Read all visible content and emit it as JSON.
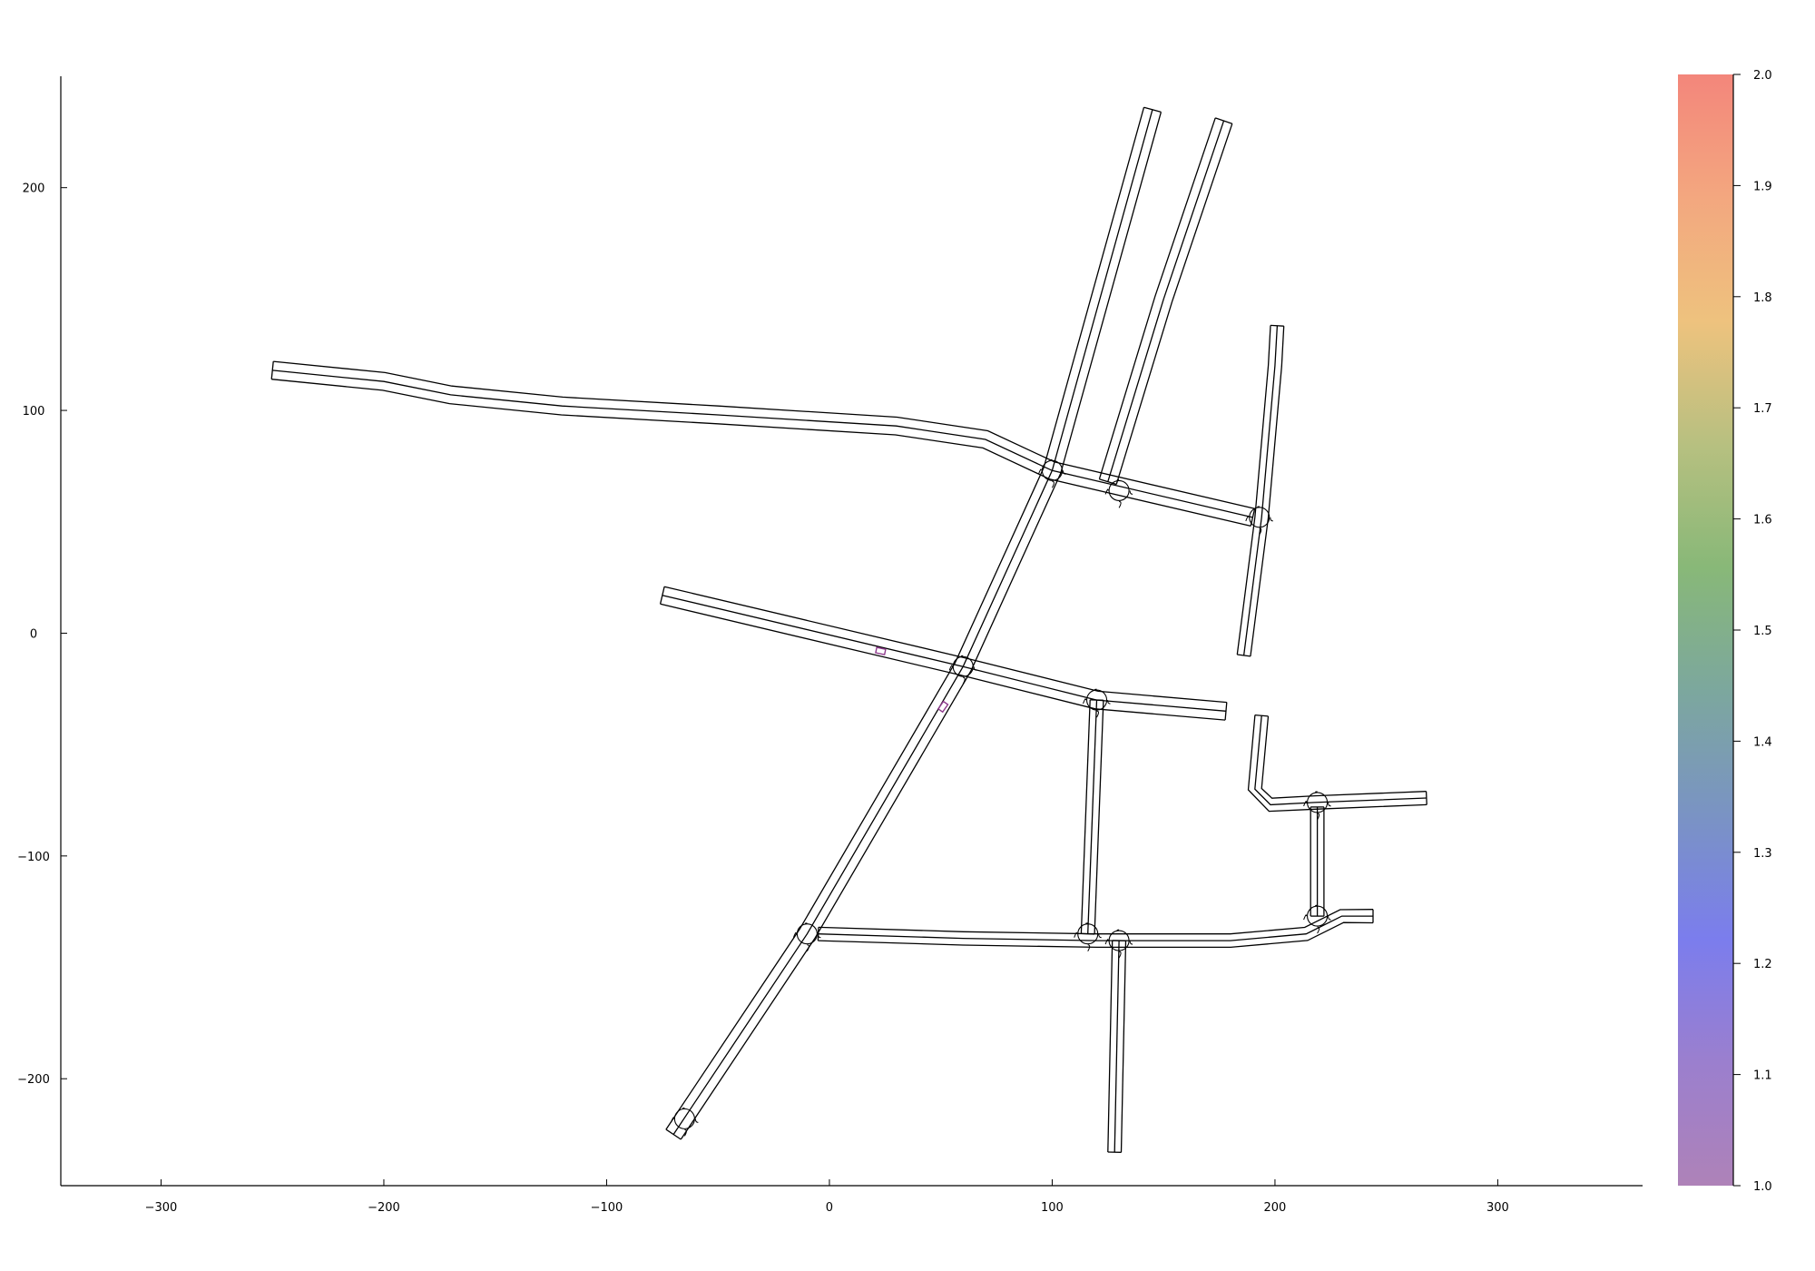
{
  "chart_data": {
    "type": "line",
    "title": "",
    "xlabel": "",
    "ylabel": "",
    "xlim": [
      -345,
      365
    ],
    "ylim": [
      -248,
      250
    ],
    "xticks": [
      {
        "v": -300,
        "label": "−300"
      },
      {
        "v": -200,
        "label": "−200"
      },
      {
        "v": -100,
        "label": "−100"
      },
      {
        "v": 0,
        "label": "0"
      },
      {
        "v": 100,
        "label": "100"
      },
      {
        "v": 200,
        "label": "200"
      },
      {
        "v": 300,
        "label": "300"
      }
    ],
    "yticks": [
      {
        "v": 200,
        "label": "200"
      },
      {
        "v": 100,
        "label": "100"
      },
      {
        "v": 0,
        "label": "0"
      },
      {
        "v": -100,
        "label": "−100"
      },
      {
        "v": -200,
        "label": "−200"
      }
    ],
    "grid": false,
    "legend": "none",
    "road_color": "#000000",
    "roads": [
      {
        "name": "west-arterial",
        "points": [
          [
            -250,
            118
          ],
          [
            -200,
            113
          ],
          [
            -170,
            107
          ],
          [
            -120,
            102
          ],
          [
            -50,
            98
          ],
          [
            30,
            93
          ],
          [
            70,
            87
          ],
          [
            100,
            73
          ],
          [
            190,
            52
          ]
        ],
        "half_width": 4
      },
      {
        "name": "north-road-1",
        "points": [
          [
            -70,
            -225
          ],
          [
            -10,
            -135
          ],
          [
            60,
            -15
          ],
          [
            100,
            73
          ],
          [
            145,
            235
          ]
        ],
        "half_width": 4
      },
      {
        "name": "north-road-2",
        "points": [
          [
            125,
            68
          ],
          [
            150,
            150
          ],
          [
            177,
            230
          ]
        ],
        "half_width": 4
      },
      {
        "name": "east-north-road",
        "points": [
          [
            186,
            -10
          ],
          [
            194,
            52
          ],
          [
            200,
            120
          ],
          [
            201,
            138
          ]
        ],
        "half_width": 3
      },
      {
        "name": "middle-road",
        "points": [
          [
            -75,
            17
          ],
          [
            60,
            -15
          ],
          [
            120,
            -30
          ],
          [
            178,
            -35
          ]
        ],
        "half_width": 4
      },
      {
        "name": "middle-south-road",
        "points": [
          [
            120,
            -30
          ],
          [
            116,
            -135
          ]
        ],
        "half_width": 3
      },
      {
        "name": "south-road",
        "points": [
          [
            -5,
            -135
          ],
          [
            60,
            -137
          ],
          [
            120,
            -138
          ],
          [
            180,
            -138
          ],
          [
            214,
            -135
          ],
          [
            230,
            -127
          ],
          [
            244,
            -127
          ]
        ],
        "half_width": 3
      },
      {
        "name": "south-stub",
        "points": [
          [
            130,
            -138
          ],
          [
            128,
            -233
          ]
        ],
        "half_width": 3
      },
      {
        "name": "east-spur",
        "points": [
          [
            219,
            -127
          ],
          [
            219,
            -78
          ]
        ],
        "half_width": 3
      },
      {
        "name": "east-curve",
        "points": [
          [
            194,
            -37
          ],
          [
            191,
            -70
          ],
          [
            198,
            -77
          ],
          [
            218,
            -76
          ],
          [
            268,
            -74
          ]
        ],
        "half_width": 3
      }
    ],
    "intersections": [
      [
        100,
        73
      ],
      [
        130,
        64
      ],
      [
        193,
        52
      ],
      [
        60,
        -15
      ],
      [
        120,
        -30
      ],
      [
        -10,
        -135
      ],
      [
        116,
        -135
      ],
      [
        130,
        -138
      ],
      [
        219,
        -127
      ],
      [
        219,
        -76
      ],
      [
        -65,
        -218
      ]
    ],
    "markers": [
      {
        "name": "vehicle-1",
        "x": 23,
        "y": -8,
        "value": 1.0
      },
      {
        "name": "vehicle-2",
        "x": 51,
        "y": -33,
        "value": 1.0
      }
    ],
    "colorbar": {
      "min": 1.0,
      "max": 2.0,
      "ticks": [
        {
          "v": 1.0,
          "label": "1.0"
        },
        {
          "v": 1.1,
          "label": "1.1"
        },
        {
          "v": 1.2,
          "label": "1.2"
        },
        {
          "v": 1.3,
          "label": "1.3"
        },
        {
          "v": 1.4,
          "label": "1.4"
        },
        {
          "v": 1.5,
          "label": "1.5"
        },
        {
          "v": 1.6,
          "label": "1.6"
        },
        {
          "v": 1.7,
          "label": "1.7"
        },
        {
          "v": 1.8,
          "label": "1.8"
        },
        {
          "v": 1.9,
          "label": "1.9"
        },
        {
          "v": 2.0,
          "label": "2.0"
        }
      ],
      "colors": [
        "#ae82b8",
        "#9b7fce",
        "#7b7ded",
        "#7a93c4",
        "#7ca79e",
        "#88b878",
        "#b7c080",
        "#eec27e",
        "#f3a77f",
        "#f3867b"
      ]
    }
  }
}
